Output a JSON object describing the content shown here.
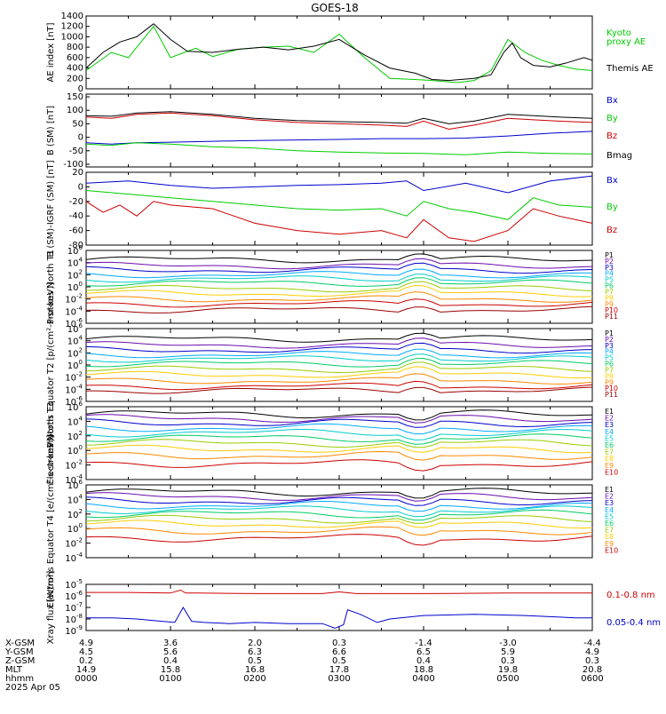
{
  "title": "GOES-18",
  "date_label": "2025 Apr 05",
  "x_ticks": [
    "0000",
    "0100",
    "0200",
    "0300",
    "0400",
    "0500",
    "0600"
  ],
  "ephemeris": {
    "rows": [
      {
        "label": "X-GSM",
        "values": [
          "4.9",
          "3.6",
          "2.0",
          "0.3",
          "-1.4",
          "-3.0",
          "-4.4"
        ]
      },
      {
        "label": "Y-GSM",
        "values": [
          "4.5",
          "5.6",
          "6.3",
          "6.6",
          "6.5",
          "5.9",
          "4.9"
        ]
      },
      {
        "label": "Z-GSM",
        "values": [
          "0.2",
          "0.4",
          "0.5",
          "0.5",
          "0.4",
          "0.3",
          "0.3"
        ]
      },
      {
        "label": "MLT",
        "values": [
          "14.9",
          "15.8",
          "16.8",
          "17.8",
          "18.8",
          "19.8",
          "20.8"
        ]
      },
      {
        "label": "hhmm",
        "values": [
          "0000",
          "0100",
          "0200",
          "0300",
          "0400",
          "0500",
          "0600"
        ]
      }
    ]
  },
  "chart_data": [
    {
      "id": "ae",
      "type": "line",
      "ylabel": "AE index [nT]",
      "ylim": [
        0,
        1400
      ],
      "ticks": [
        "0",
        "200",
        "400",
        "600",
        "800",
        "1000",
        "1200",
        "1400"
      ],
      "series": [
        {
          "name": "Kyoto proxy AE",
          "color": "#00cc00",
          "x": [
            0,
            0.1,
            0.3,
            0.5,
            0.7,
            0.8,
            1.0,
            1.3,
            1.5,
            1.8,
            2.1,
            2.4,
            2.7,
            3.0,
            3.3,
            3.6,
            3.9,
            4.1,
            4.4,
            4.6,
            4.8,
            5.0,
            5.2,
            5.4,
            5.6,
            5.8,
            6.0
          ],
          "y": [
            350,
            470,
            700,
            600,
            1000,
            1200,
            600,
            780,
            620,
            760,
            800,
            820,
            700,
            1050,
            600,
            200,
            180,
            160,
            120,
            160,
            350,
            950,
            700,
            550,
            450,
            380,
            350
          ]
        },
        {
          "name": "Themis AE",
          "color": "#000000",
          "x": [
            0,
            0.2,
            0.4,
            0.6,
            0.8,
            1.0,
            1.2,
            1.5,
            1.8,
            2.1,
            2.4,
            2.7,
            3.0,
            3.3,
            3.6,
            3.9,
            4.1,
            4.3,
            4.6,
            4.8,
            4.95,
            5.05,
            5.15,
            5.3,
            5.5,
            5.7,
            5.9,
            6.0
          ],
          "y": [
            400,
            700,
            900,
            1000,
            1250,
            950,
            720,
            700,
            760,
            800,
            750,
            820,
            950,
            650,
            400,
            300,
            180,
            160,
            200,
            270,
            700,
            880,
            600,
            450,
            420,
            500,
            600,
            550
          ]
        }
      ]
    },
    {
      "id": "bgsm",
      "type": "line",
      "ylabel": "B (SM) [nT]",
      "ylim": [
        -110,
        160
      ],
      "ticks": [
        "-100",
        "-50",
        "0",
        "50",
        "100",
        "150",
        "200"
      ],
      "tick_values": [
        -100,
        -50,
        0,
        50,
        100,
        150,
        200
      ],
      "series": [
        {
          "name": "Bx",
          "color": "#0000cc",
          "x": [
            0,
            0.3,
            0.6,
            1.0,
            1.5,
            2.0,
            2.5,
            3.0,
            3.5,
            4.0,
            4.5,
            5.0,
            5.5,
            6.0
          ],
          "y": [
            -20,
            -25,
            -20,
            -18,
            -15,
            -12,
            -10,
            -8,
            -5,
            -5,
            -3,
            5,
            15,
            22
          ]
        },
        {
          "name": "By",
          "color": "#00cc00",
          "x": [
            0,
            0.3,
            0.6,
            1.0,
            1.5,
            2.0,
            2.5,
            3.0,
            3.5,
            4.0,
            4.5,
            5.0,
            5.5,
            6.0
          ],
          "y": [
            -25,
            -30,
            -20,
            -25,
            -35,
            -40,
            -50,
            -55,
            -58,
            -60,
            -65,
            -55,
            -60,
            -62
          ]
        },
        {
          "name": "Bz",
          "color": "#cc0000",
          "x": [
            0,
            0.3,
            0.6,
            1.0,
            1.5,
            2.0,
            2.5,
            3.0,
            3.5,
            3.8,
            4.0,
            4.3,
            4.6,
            5.0,
            5.3,
            5.6,
            6.0
          ],
          "y": [
            75,
            70,
            85,
            90,
            80,
            65,
            55,
            50,
            45,
            40,
            60,
            30,
            45,
            70,
            65,
            60,
            55
          ]
        },
        {
          "name": "Bmag",
          "color": "#000000",
          "x": [
            0,
            0.3,
            0.6,
            1.0,
            1.5,
            2.0,
            2.5,
            3.0,
            3.5,
            3.8,
            4.0,
            4.3,
            4.6,
            5.0,
            5.3,
            5.6,
            6.0
          ],
          "y": [
            80,
            78,
            90,
            95,
            85,
            70,
            62,
            58,
            55,
            52,
            70,
            50,
            60,
            85,
            80,
            75,
            70
          ]
        }
      ]
    },
    {
      "id": "bdiff",
      "type": "line",
      "ylabel": "B (SM)-IGRF (SM) [nT]",
      "ylim": [
        -80,
        20
      ],
      "ticks": [
        "-80",
        "-60",
        "-40",
        "-20",
        "0",
        "20"
      ],
      "tick_values": [
        -80,
        -60,
        -40,
        -20,
        0,
        20
      ],
      "series": [
        {
          "name": "Bx",
          "color": "#0000cc",
          "x": [
            0,
            0.5,
            1.0,
            1.5,
            2.0,
            2.5,
            3.0,
            3.5,
            3.8,
            4.0,
            4.5,
            5.0,
            5.5,
            6.0
          ],
          "y": [
            5,
            8,
            2,
            -2,
            0,
            2,
            3,
            5,
            8,
            -5,
            5,
            -8,
            8,
            15
          ]
        },
        {
          "name": "By",
          "color": "#00cc00",
          "x": [
            0,
            0.5,
            1.0,
            1.5,
            2.0,
            2.5,
            3.0,
            3.5,
            3.8,
            4.0,
            4.3,
            4.6,
            5.0,
            5.3,
            5.6,
            6.0
          ],
          "y": [
            -5,
            -10,
            -15,
            -20,
            -25,
            -30,
            -32,
            -30,
            -40,
            -20,
            -30,
            -35,
            -45,
            -15,
            -25,
            -28
          ]
        },
        {
          "name": "Bz",
          "color": "#cc0000",
          "x": [
            0,
            0.2,
            0.4,
            0.6,
            0.8,
            1.0,
            1.5,
            2.0,
            2.5,
            3.0,
            3.5,
            3.8,
            4.0,
            4.3,
            4.6,
            5.0,
            5.3,
            5.6,
            6.0
          ],
          "y": [
            -20,
            -35,
            -25,
            -40,
            -20,
            -25,
            -30,
            -50,
            -60,
            -65,
            -60,
            -70,
            -45,
            -70,
            -75,
            -60,
            -30,
            -40,
            -50
          ]
        }
      ]
    },
    {
      "id": "pT1",
      "type": "log_lines",
      "ylabel": "Protons North T1",
      "ylim_exp": [
        -6,
        6
      ],
      "tick_exps": [
        -6,
        -4,
        -2,
        0,
        2,
        4,
        6
      ],
      "labels": [
        "P1",
        "P2",
        "P3",
        "P4",
        "P5",
        "P6",
        "P7",
        "P8",
        "P9",
        "P10",
        "P11"
      ],
      "levels": [
        4.5,
        3.5,
        2.8,
        2.0,
        1.3,
        0.6,
        -0.3,
        -1.1,
        -2.0,
        -2.8,
        -3.8
      ]
    },
    {
      "id": "pT2",
      "type": "log_lines",
      "ylabel": "Protons Equator T2 [p/(cm²-s-sr-keV)]",
      "ylim_exp": [
        -6,
        6
      ],
      "tick_exps": [
        -6,
        -4,
        -2,
        0,
        2,
        4,
        6
      ],
      "labels": [
        "P1",
        "P2",
        "P3",
        "P4",
        "P5",
        "P6",
        "P7",
        "P8",
        "P9",
        "P10",
        "P11"
      ],
      "levels": [
        4.3,
        3.3,
        2.5,
        1.7,
        1.0,
        0.2,
        -0.7,
        -1.6,
        -2.6,
        -3.5,
        -4.2
      ]
    },
    {
      "id": "eT3",
      "type": "log_lines",
      "ylabel": "Electrons North T3",
      "ylim_exp": [
        -4,
        6
      ],
      "tick_exps": [
        -4,
        -2,
        0,
        2,
        4,
        6
      ],
      "labels": [
        "E1",
        "E2",
        "E3",
        "E4",
        "E5",
        "E6",
        "E7",
        "E8",
        "E9",
        "E10"
      ],
      "levels": [
        5.0,
        4.4,
        3.8,
        3.1,
        2.4,
        1.7,
        1.0,
        0.2,
        -0.7,
        -1.8
      ]
    },
    {
      "id": "eT4",
      "type": "log_lines",
      "ylabel": "Electrons Equator T4 [e/(cm²-s-sr-keV)]",
      "ylim_exp": [
        -4,
        6
      ],
      "tick_exps": [
        -4,
        -2,
        0,
        2,
        4,
        6
      ],
      "labels": [
        "E1",
        "E2",
        "E3",
        "E4",
        "E5",
        "E6",
        "E7",
        "E8",
        "E9",
        "E10"
      ],
      "levels": [
        5.0,
        4.4,
        3.8,
        3.2,
        2.6,
        2.0,
        1.3,
        0.6,
        -0.3,
        -1.3
      ]
    },
    {
      "id": "xray",
      "type": "log_series",
      "ylabel": "Xray flux [W/m²]",
      "ylim_exp": [
        -9,
        -5
      ],
      "tick_exps": [
        -9,
        -8,
        -7,
        -6,
        -5
      ],
      "series": [
        {
          "name": "0.1-0.8 nm",
          "color": "#cc0000",
          "x": [
            0,
            0.5,
            1.0,
            1.12,
            1.18,
            1.3,
            2.0,
            2.8,
            3.0,
            3.2,
            4.0,
            5.0,
            6.0
          ],
          "y": [
            -5.7,
            -5.7,
            -5.75,
            -5.5,
            -5.75,
            -5.75,
            -5.8,
            -5.8,
            -5.65,
            -5.8,
            -5.8,
            -5.75,
            -5.75
          ]
        },
        {
          "name": "0.05-0.4 nm",
          "color": "#0000cc",
          "x": [
            0,
            0.3,
            0.6,
            0.9,
            1.05,
            1.15,
            1.25,
            1.4,
            1.7,
            2.0,
            2.4,
            2.8,
            2.95,
            3.05,
            3.1,
            3.25,
            3.45,
            3.6,
            4.0,
            4.6,
            5.2,
            5.8,
            6.0
          ],
          "y": [
            -7.9,
            -7.9,
            -8.0,
            -8.2,
            -8.3,
            -7.0,
            -8.2,
            -8.3,
            -8.4,
            -8.3,
            -8.4,
            -8.4,
            -8.8,
            -8.5,
            -7.2,
            -7.6,
            -8.3,
            -8.0,
            -7.7,
            -7.6,
            -7.7,
            -7.9,
            -7.9
          ]
        }
      ]
    }
  ],
  "legends": {
    "ae": [
      {
        "text": "Kyoto",
        "color": "#00cc00"
      },
      {
        "text": "proxy AE",
        "color": "#00cc00"
      },
      {
        "text": "Themis AE",
        "color": "#000000"
      }
    ],
    "bgsm": [
      {
        "text": "Bx",
        "color": "#0000cc"
      },
      {
        "text": "By",
        "color": "#00cc00"
      },
      {
        "text": "Bz",
        "color": "#cc0000"
      },
      {
        "text": "Bmag",
        "color": "#000000"
      }
    ],
    "bdiff": [
      {
        "text": "Bx",
        "color": "#0000cc"
      },
      {
        "text": "By",
        "color": "#00cc00"
      },
      {
        "text": "Bz",
        "color": "#cc0000"
      }
    ],
    "xray": [
      {
        "text": "0.1-0.8 nm",
        "color": "#cc0000"
      },
      {
        "text": "0.05-0.4 nm",
        "color": "#0000cc"
      }
    ]
  },
  "channel_colors": [
    "#000000",
    "#6a0dad",
    "#0000cc",
    "#00aaff",
    "#00cccc",
    "#00cc66",
    "#99cc00",
    "#ffcc00",
    "#ff8800",
    "#cc0000",
    "#990000"
  ]
}
